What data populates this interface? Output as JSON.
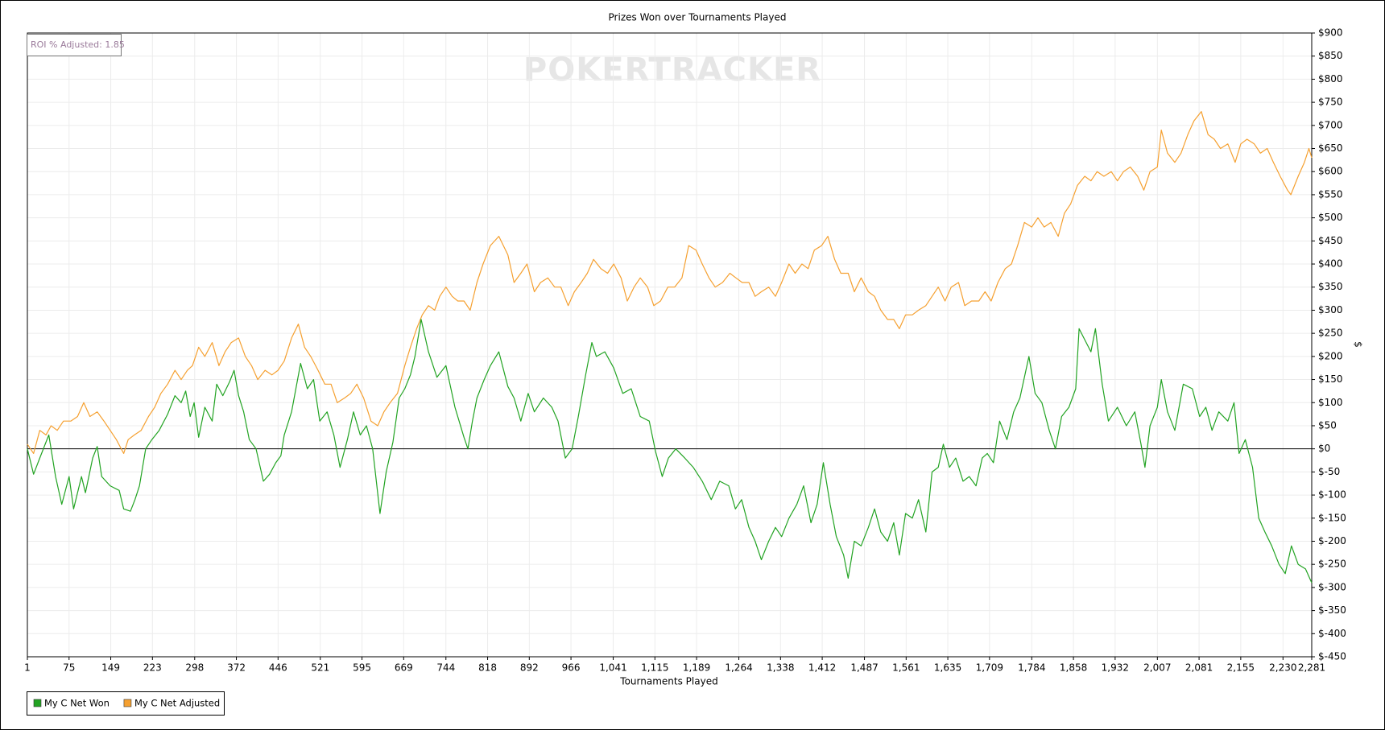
{
  "chart_data": {
    "type": "line",
    "title": "Prizes Won over Tournaments Played",
    "x_label": "Tournaments Played",
    "y_label": "$",
    "annotation": "ROI % Adjusted: 1.85",
    "watermark": "POKERTRACKER",
    "grid": true,
    "xlim": [
      1,
      2281
    ],
    "ylim": [
      -450,
      900
    ],
    "xticks": [
      1,
      75,
      149,
      223,
      298,
      372,
      446,
      521,
      595,
      669,
      744,
      818,
      892,
      966,
      {
        "value": 1041,
        "label": "1,041"
      },
      {
        "value": 1115,
        "label": "1,115"
      },
      {
        "value": 1189,
        "label": "1,189"
      },
      {
        "value": 1264,
        "label": "1,264"
      },
      {
        "value": 1338,
        "label": "1,338"
      },
      {
        "value": 1412,
        "label": "1,412"
      },
      {
        "value": 1487,
        "label": "1,487"
      },
      {
        "value": 1561,
        "label": "1,561"
      },
      {
        "value": 1635,
        "label": "1,635"
      },
      {
        "value": 1709,
        "label": "1,709"
      },
      {
        "value": 1784,
        "label": "1,784"
      },
      {
        "value": 1858,
        "label": "1,858"
      },
      {
        "value": 1932,
        "label": "1,932"
      },
      {
        "value": 2007,
        "label": "2,007"
      },
      {
        "value": 2081,
        "label": "2,081"
      },
      {
        "value": 2155,
        "label": "2,155"
      },
      {
        "value": 2230,
        "label": "2,230"
      },
      {
        "value": 2281,
        "label": "2,281"
      }
    ],
    "yticks": [
      {
        "value": 900,
        "label": "$900"
      },
      {
        "value": 850,
        "label": "$850"
      },
      {
        "value": 800,
        "label": "$800"
      },
      {
        "value": 750,
        "label": "$750"
      },
      {
        "value": 700,
        "label": "$700"
      },
      {
        "value": 650,
        "label": "$650"
      },
      {
        "value": 600,
        "label": "$600"
      },
      {
        "value": 550,
        "label": "$550"
      },
      {
        "value": 500,
        "label": "$500"
      },
      {
        "value": 450,
        "label": "$450"
      },
      {
        "value": 400,
        "label": "$400"
      },
      {
        "value": 350,
        "label": "$350"
      },
      {
        "value": 300,
        "label": "$300"
      },
      {
        "value": 250,
        "label": "$250"
      },
      {
        "value": 200,
        "label": "$200"
      },
      {
        "value": 150,
        "label": "$150"
      },
      {
        "value": 100,
        "label": "$100"
      },
      {
        "value": 50,
        "label": "$50"
      },
      {
        "value": 0,
        "label": "$0"
      },
      {
        "value": -50,
        "label": "$-50"
      },
      {
        "value": -100,
        "label": "$-100"
      },
      {
        "value": -150,
        "label": "$-150"
      },
      {
        "value": -200,
        "label": "$-200"
      },
      {
        "value": -250,
        "label": "$-250"
      },
      {
        "value": -300,
        "label": "$-300"
      },
      {
        "value": -350,
        "label": "$-350"
      },
      {
        "value": -400,
        "label": "$-400"
      },
      {
        "value": -450,
        "label": "$-450"
      }
    ],
    "series": [
      {
        "name": "My C Net Won",
        "color": "#22a322",
        "x": [
          1,
          12,
          23,
          39,
          51,
          62,
          75,
          83,
          97,
          104,
          117,
          125,
          133,
          148,
          164,
          172,
          184,
          192,
          200,
          211,
          222,
          235,
          250,
          263,
          274,
          282,
          290,
          297,
          305,
          316,
          329,
          337,
          348,
          360,
          368,
          376,
          385,
          395,
          407,
          420,
          431,
          442,
          451,
          457,
          470,
          486,
          498,
          509,
          520,
          533,
          545,
          556,
          569,
          580,
          592,
          603,
          614,
          627,
          638,
          650,
          661,
          671,
          681,
          689,
          700,
          713,
          728,
          744,
          760,
          776,
          783,
          791,
          799,
          812,
          823,
          838,
          854,
          865,
          877,
          890,
          901,
          917,
          932,
          943,
          956,
          968,
          979,
          992,
          1003,
          1011,
          1026,
          1042,
          1058,
          1073,
          1089,
          1105,
          1116,
          1128,
          1139,
          1152,
          1168,
          1183,
          1199,
          1215,
          1230,
          1246,
          1258,
          1269,
          1282,
          1293,
          1304,
          1317,
          1329,
          1340,
          1353,
          1367,
          1379,
          1392,
          1403,
          1414,
          1426,
          1437,
          1450,
          1458,
          1469,
          1481,
          1494,
          1505,
          1516,
          1528,
          1539,
          1549,
          1560,
          1572,
          1583,
          1596,
          1607,
          1618,
          1627,
          1638,
          1649,
          1662,
          1673,
          1685,
          1696,
          1705,
          1716,
          1727,
          1740,
          1752,
          1763,
          1779,
          1790,
          1802,
          1815,
          1826,
          1837,
          1850,
          1862,
          1868,
          1889,
          1897,
          1909,
          1920,
          1936,
          1952,
          1967,
          1978,
          1985,
          1994,
          2007,
          2014,
          2025,
          2038,
          2053,
          2069,
          2082,
          2093,
          2104,
          2116,
          2132,
          2143,
          2152,
          2163,
          2176,
          2187,
          2198,
          2210,
          2223,
          2234,
          2245,
          2257,
          2270,
          2281
        ],
        "values": [
          0,
          -55,
          -20,
          30,
          -60,
          -120,
          -60,
          -130,
          -60,
          -95,
          -20,
          5,
          -60,
          -80,
          -90,
          -130,
          -135,
          -110,
          -80,
          0,
          20,
          40,
          75,
          115,
          100,
          125,
          70,
          100,
          25,
          90,
          60,
          140,
          115,
          145,
          170,
          115,
          80,
          20,
          0,
          -70,
          -55,
          -30,
          -15,
          30,
          80,
          185,
          130,
          150,
          60,
          80,
          30,
          -40,
          20,
          80,
          30,
          50,
          0,
          -140,
          -50,
          15,
          110,
          130,
          160,
          200,
          280,
          210,
          155,
          180,
          90,
          25,
          0,
          60,
          110,
          150,
          180,
          210,
          135,
          110,
          60,
          120,
          80,
          110,
          90,
          60,
          -20,
          0,
          70,
          160,
          230,
          200,
          210,
          175,
          120,
          130,
          70,
          60,
          -5,
          -60,
          -20,
          0,
          -20,
          -40,
          -70,
          -110,
          -70,
          -80,
          -130,
          -110,
          -170,
          -200,
          -240,
          -200,
          -170,
          -190,
          -150,
          -120,
          -80,
          -160,
          -120,
          -30,
          -120,
          -190,
          -230,
          -280,
          -200,
          -210,
          -170,
          -130,
          -180,
          -200,
          -160,
          -230,
          -140,
          -150,
          -110,
          -180,
          -50,
          -40,
          10,
          -40,
          -20,
          -70,
          -60,
          -80,
          -20,
          -10,
          -30,
          60,
          20,
          80,
          110,
          200,
          120,
          100,
          40,
          0,
          70,
          90,
          130,
          260,
          210,
          260,
          140,
          60,
          90,
          50,
          80,
          10,
          -40,
          50,
          90,
          150,
          80,
          40,
          140,
          130,
          70,
          90,
          40,
          80,
          60,
          100,
          -10,
          20,
          -40,
          -150,
          -180,
          -210,
          -250,
          -270,
          -210,
          -250,
          -260,
          -290
        ]
      },
      {
        "name": "My C Net Adjusted",
        "color": "#f5a030",
        "x": [
          1,
          12,
          23,
          34,
          43,
          54,
          65,
          78,
          90,
          101,
          112,
          125,
          137,
          148,
          159,
          172,
          180,
          191,
          203,
          216,
          227,
          238,
          250,
          263,
          274,
          285,
          294,
          305,
          316,
          329,
          341,
          352,
          363,
          376,
          388,
          399,
          410,
          423,
          435,
          446,
          457,
          470,
          482,
          493,
          504,
          517,
          529,
          540,
          551,
          564,
          575,
          586,
          598,
          611,
          623,
          634,
          645,
          658,
          671,
          681,
          692,
          702,
          713,
          724,
          733,
          744,
          755,
          765,
          776,
          787,
          799,
          810,
          823,
          838,
          854,
          865,
          877,
          888,
          901,
          912,
          925,
          937,
          948,
          961,
          972,
          984,
          995,
          1006,
          1019,
          1031,
          1042,
          1055,
          1066,
          1078,
          1089,
          1102,
          1113,
          1125,
          1138,
          1150,
          1163,
          1175,
          1188,
          1199,
          1211,
          1222,
          1235,
          1248,
          1259,
          1270,
          1282,
          1293,
          1304,
          1317,
          1329,
          1340,
          1353,
          1364,
          1376,
          1387,
          1398,
          1411,
          1422,
          1434,
          1445,
          1458,
          1469,
          1481,
          1494,
          1505,
          1516,
          1528,
          1539,
          1549,
          1560,
          1572,
          1583,
          1596,
          1607,
          1618,
          1630,
          1641,
          1654,
          1665,
          1677,
          1690,
          1701,
          1712,
          1724,
          1737,
          1748,
          1759,
          1771,
          1784,
          1795,
          1806,
          1818,
          1831,
          1842,
          1853,
          1865,
          1878,
          1889,
          1900,
          1912,
          1925,
          1936,
          1947,
          1959,
          1972,
          1983,
          1994,
          2007,
          2014,
          2025,
          2038,
          2049,
          2061,
          2072,
          2085,
          2097,
          2108,
          2119,
          2132,
          2145,
          2155,
          2166,
          2179,
          2190,
          2202,
          2213,
          2225,
          2238,
          2244,
          2257,
          2268,
          2276,
          2281
        ],
        "values": [
          10,
          -10,
          40,
          30,
          50,
          40,
          60,
          60,
          70,
          100,
          70,
          80,
          60,
          40,
          20,
          -10,
          20,
          30,
          40,
          70,
          90,
          120,
          140,
          170,
          150,
          170,
          180,
          220,
          200,
          230,
          180,
          210,
          230,
          240,
          200,
          180,
          150,
          170,
          160,
          170,
          190,
          240,
          270,
          220,
          200,
          170,
          140,
          140,
          100,
          110,
          120,
          140,
          110,
          60,
          50,
          80,
          100,
          120,
          180,
          220,
          260,
          290,
          310,
          300,
          330,
          350,
          330,
          320,
          320,
          300,
          360,
          400,
          440,
          460,
          420,
          360,
          380,
          400,
          340,
          360,
          370,
          350,
          350,
          310,
          340,
          360,
          380,
          410,
          390,
          380,
          400,
          370,
          320,
          350,
          370,
          350,
          310,
          320,
          350,
          350,
          370,
          440,
          430,
          400,
          370,
          350,
          360,
          380,
          370,
          360,
          360,
          330,
          340,
          350,
          330,
          360,
          400,
          380,
          400,
          390,
          430,
          440,
          460,
          410,
          380,
          380,
          340,
          370,
          340,
          330,
          300,
          280,
          280,
          260,
          290,
          290,
          300,
          310,
          330,
          350,
          320,
          350,
          360,
          310,
          320,
          320,
          340,
          320,
          360,
          390,
          400,
          440,
          490,
          480,
          500,
          480,
          490,
          460,
          510,
          530,
          570,
          590,
          580,
          600,
          590,
          600,
          580,
          600,
          610,
          590,
          560,
          600,
          610,
          690,
          640,
          620,
          640,
          680,
          710,
          730,
          680,
          670,
          650,
          660,
          620,
          660,
          670,
          660,
          640,
          650,
          620,
          590,
          560,
          550,
          590,
          620,
          650,
          630
        ]
      }
    ]
  }
}
